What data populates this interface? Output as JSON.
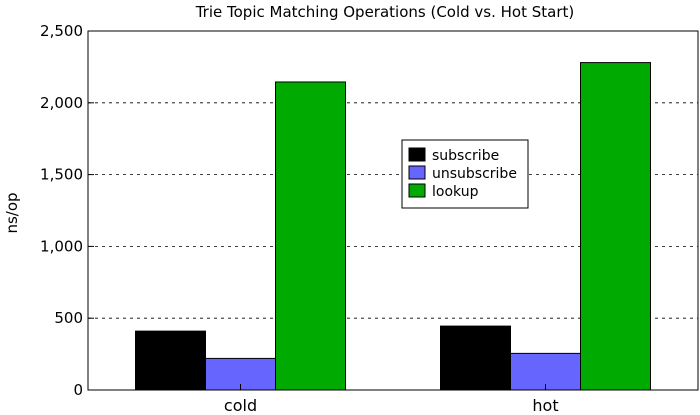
{
  "chart_data": {
    "type": "bar",
    "title": "Trie Topic Matching Operations (Cold vs. Hot Start)",
    "xlabel": "",
    "ylabel": "ns/op",
    "categories": [
      "cold",
      "hot"
    ],
    "ylim": [
      0,
      2500
    ],
    "yticks": [
      0,
      500,
      1000,
      1500,
      2000,
      2500
    ],
    "ytick_labels": [
      "0",
      "500",
      "1,000",
      "1,500",
      "2,000",
      "2,500"
    ],
    "grid": "horizontal dashed",
    "legend_position": "center-right",
    "series": [
      {
        "name": "subscribe",
        "color": "#000000",
        "values": [
          410,
          445
        ]
      },
      {
        "name": "unsubscribe",
        "color": "#6666ff",
        "values": [
          220,
          255
        ]
      },
      {
        "name": "lookup",
        "color": "#00aa00",
        "values": [
          2145,
          2280
        ]
      }
    ]
  }
}
